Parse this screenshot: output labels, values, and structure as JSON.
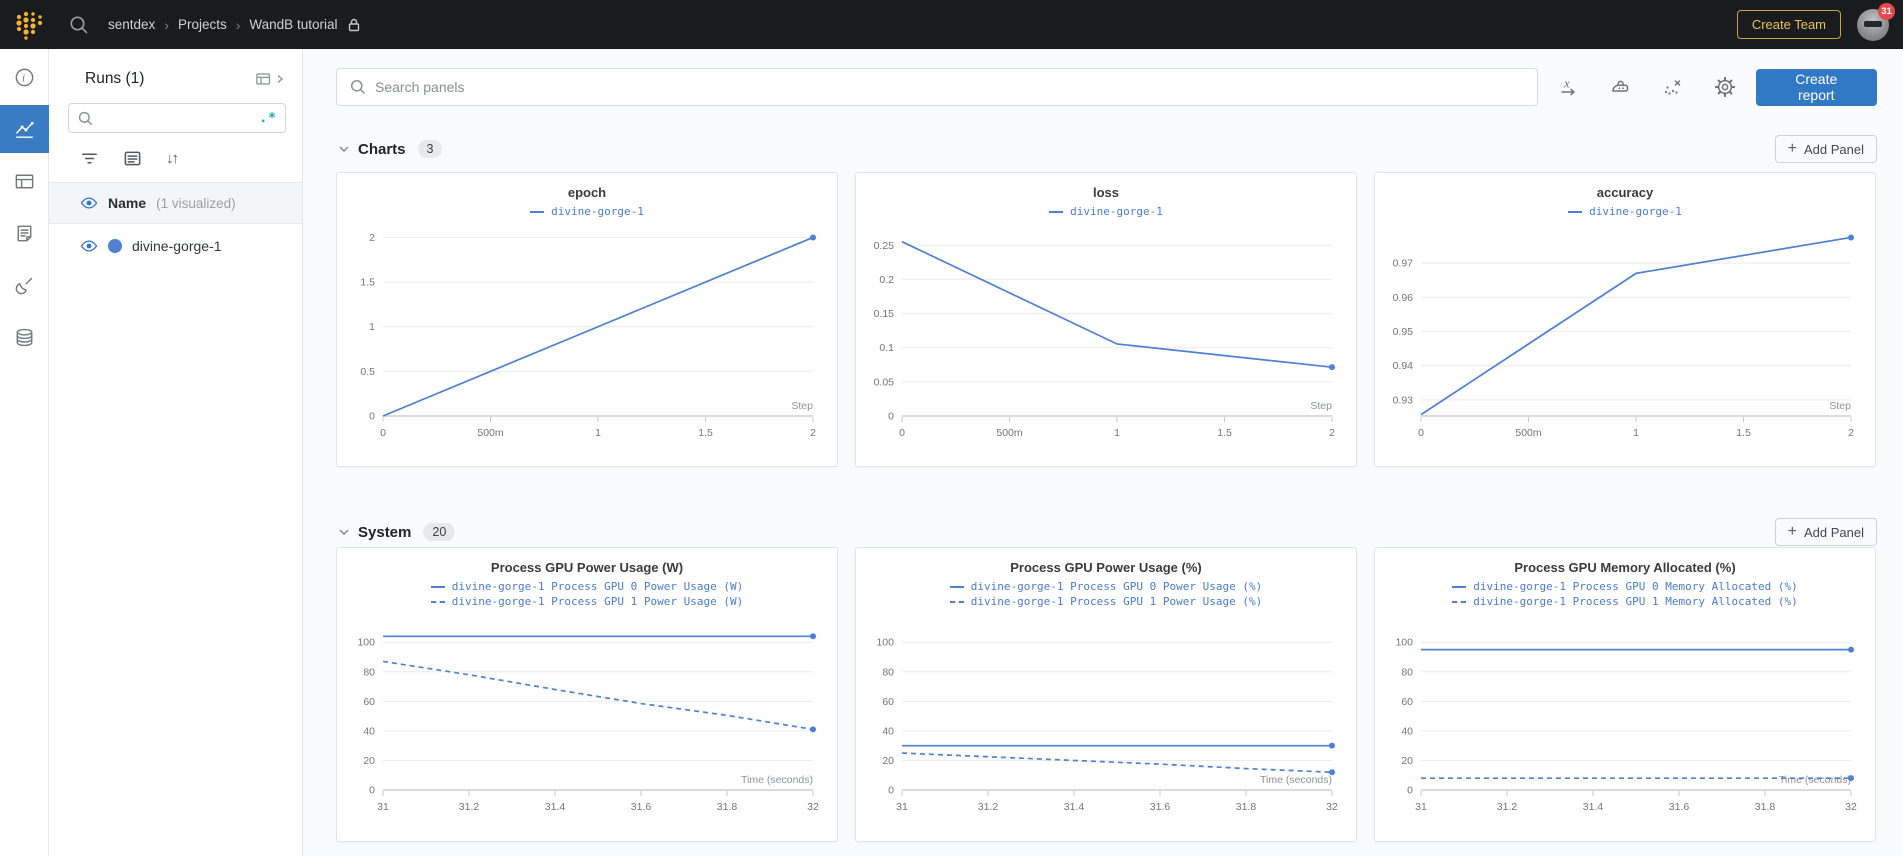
{
  "topbar": {
    "breadcrumb": {
      "parts": [
        "sentdex",
        "Projects",
        "WandB tutorial"
      ]
    },
    "create_team_label": "Create Team",
    "notification_count": "31",
    "icons": [
      "wandb-dots-logo",
      "search-icon",
      "lock-icon",
      "avatar"
    ]
  },
  "sidebar": {
    "nav_icons": [
      "info-icon",
      "line-chart-icon",
      "table-icon",
      "logs-icon",
      "sweep-broom-icon",
      "artifacts-database-icon"
    ],
    "selected": "line-chart-icon"
  },
  "runs_panel": {
    "title": "Runs (1)",
    "search_placeholder": "",
    "regex_glyph": ".*",
    "tool_icons": [
      "filter-icon",
      "list-icon",
      "sort-icon"
    ],
    "header_name": "Name",
    "header_visualized": "(1 visualized)",
    "runs": [
      {
        "name": "divine-gorge-1",
        "color": "#4e80d4",
        "visible": true
      }
    ]
  },
  "main_toolbar": {
    "search_placeholder": "Search panels",
    "icons": [
      "x-axis-icon",
      "panel-settings-icon",
      "outliers-icon",
      "gear-icon"
    ],
    "create_report_label": "Create report"
  },
  "sections": [
    {
      "label": "Charts",
      "count": "3",
      "add_panel_label": "Add Panel"
    },
    {
      "label": "System",
      "count": "20",
      "add_panel_label": "Add Panel"
    }
  ],
  "colors": {
    "topbar_bg": "#191b1f",
    "gold": "#eac253",
    "accent_blue": "#3178c5",
    "line_blue": "#4e80d4",
    "selected_nav_bg": "#3a7cc4",
    "badge_red": "#e5484d",
    "regex_teal": "#11a8bd"
  },
  "chart_data": [
    {
      "type": "line",
      "title": "epoch",
      "xlabel": "Step",
      "xlim": [
        0,
        2
      ],
      "ylim": [
        0,
        2.05
      ],
      "grid": true,
      "legend_position": "top-center",
      "xticks": [
        {
          "v": 0,
          "label": "0"
        },
        {
          "v": 0.5,
          "label": "500m"
        },
        {
          "v": 1,
          "label": "1"
        },
        {
          "v": 1.5,
          "label": "1.5"
        },
        {
          "v": 2,
          "label": "2"
        }
      ],
      "yticks": [
        {
          "v": 0,
          "label": "0"
        },
        {
          "v": 0.5,
          "label": "0.5"
        },
        {
          "v": 1,
          "label": "1"
        },
        {
          "v": 1.5,
          "label": "1.5"
        },
        {
          "v": 2,
          "label": "2"
        }
      ],
      "series": [
        {
          "name": "divine-gorge-1",
          "style": "solid",
          "x": [
            0,
            1,
            2
          ],
          "y": [
            0,
            1,
            2
          ]
        }
      ]
    },
    {
      "type": "line",
      "title": "loss",
      "xlabel": "Step",
      "xlim": [
        0,
        2
      ],
      "ylim": [
        0,
        0.268
      ],
      "grid": true,
      "legend_position": "top-center",
      "xticks": [
        {
          "v": 0,
          "label": "0"
        },
        {
          "v": 0.5,
          "label": "500m"
        },
        {
          "v": 1,
          "label": "1"
        },
        {
          "v": 1.5,
          "label": "1.5"
        },
        {
          "v": 2,
          "label": "2"
        }
      ],
      "yticks": [
        {
          "v": 0,
          "label": "0"
        },
        {
          "v": 0.05,
          "label": "0.05"
        },
        {
          "v": 0.1,
          "label": "0.1"
        },
        {
          "v": 0.15,
          "label": "0.15"
        },
        {
          "v": 0.2,
          "label": "0.2"
        },
        {
          "v": 0.25,
          "label": "0.25"
        }
      ],
      "series": [
        {
          "name": "divine-gorge-1",
          "style": "solid",
          "x": [
            0,
            1,
            2
          ],
          "y": [
            0.2553,
            0.1055,
            0.0715
          ]
        }
      ]
    },
    {
      "type": "line",
      "title": "accuracy",
      "xlabel": "Step",
      "xlim": [
        0,
        2
      ],
      "ylim": [
        0.9253,
        0.9788
      ],
      "grid": true,
      "legend_position": "top-center",
      "xticks": [
        {
          "v": 0,
          "label": "0"
        },
        {
          "v": 0.5,
          "label": "500m"
        },
        {
          "v": 1,
          "label": "1"
        },
        {
          "v": 1.5,
          "label": "1.5"
        },
        {
          "v": 2,
          "label": "2"
        }
      ],
      "yticks": [
        {
          "v": 0.93,
          "label": "0.93"
        },
        {
          "v": 0.94,
          "label": "0.94"
        },
        {
          "v": 0.95,
          "label": "0.95"
        },
        {
          "v": 0.96,
          "label": "0.96"
        },
        {
          "v": 0.97,
          "label": "0.97"
        }
      ],
      "series": [
        {
          "name": "divine-gorge-1",
          "style": "solid",
          "x": [
            0,
            1,
            2
          ],
          "y": [
            0.9257,
            0.967,
            0.9775
          ]
        }
      ]
    },
    {
      "type": "line",
      "title": "Process GPU Power Usage (W)",
      "xlabel": "Time (seconds)",
      "xlim": [
        31,
        32
      ],
      "ylim": [
        0,
        113
      ],
      "grid": true,
      "legend_position": "top-center",
      "xticks": [
        {
          "v": 31,
          "label": "31"
        },
        {
          "v": 31.2,
          "label": "31.2"
        },
        {
          "v": 31.4,
          "label": "31.4"
        },
        {
          "v": 31.6,
          "label": "31.6"
        },
        {
          "v": 31.8,
          "label": "31.8"
        },
        {
          "v": 32,
          "label": "32"
        }
      ],
      "yticks": [
        {
          "v": 0,
          "label": "0"
        },
        {
          "v": 20,
          "label": "20"
        },
        {
          "v": 40,
          "label": "40"
        },
        {
          "v": 60,
          "label": "60"
        },
        {
          "v": 80,
          "label": "80"
        },
        {
          "v": 100,
          "label": "100"
        }
      ],
      "series": [
        {
          "name": "divine-gorge-1 Process GPU 0 Power Usage (W)",
          "style": "solid",
          "x": [
            31,
            32
          ],
          "y": [
            104,
            104
          ]
        },
        {
          "name": "divine-gorge-1 Process GPU 1 Power Usage (W)",
          "style": "dashed",
          "x": [
            31,
            31.2,
            31.4,
            31.6,
            31.8,
            32
          ],
          "y": [
            87,
            78,
            68,
            58.5,
            50.5,
            41
          ]
        }
      ]
    },
    {
      "type": "line",
      "title": "Process GPU Power Usage (%)",
      "xlabel": "Time (seconds)",
      "xlim": [
        31,
        32
      ],
      "ylim": [
        0,
        113
      ],
      "grid": true,
      "legend_position": "top-center",
      "xticks": [
        {
          "v": 31,
          "label": "31"
        },
        {
          "v": 31.2,
          "label": "31.2"
        },
        {
          "v": 31.4,
          "label": "31.4"
        },
        {
          "v": 31.6,
          "label": "31.6"
        },
        {
          "v": 31.8,
          "label": "31.8"
        },
        {
          "v": 32,
          "label": "32"
        }
      ],
      "yticks": [
        {
          "v": 0,
          "label": "0"
        },
        {
          "v": 20,
          "label": "20"
        },
        {
          "v": 40,
          "label": "40"
        },
        {
          "v": 60,
          "label": "60"
        },
        {
          "v": 80,
          "label": "80"
        },
        {
          "v": 100,
          "label": "100"
        }
      ],
      "series": [
        {
          "name": "divine-gorge-1 Process GPU 0 Power Usage (%)",
          "style": "solid",
          "x": [
            31,
            32
          ],
          "y": [
            30,
            30
          ]
        },
        {
          "name": "divine-gorge-1 Process GPU 1 Power Usage (%)",
          "style": "dashed",
          "x": [
            31,
            31.2,
            31.4,
            31.6,
            31.8,
            32
          ],
          "y": [
            25,
            22.5,
            20,
            17.5,
            14.5,
            12
          ]
        }
      ]
    },
    {
      "type": "line",
      "title": "Process GPU Memory Allocated (%)",
      "xlabel": "Time (seconds)",
      "xlim": [
        31,
        32
      ],
      "ylim": [
        0,
        113
      ],
      "grid": true,
      "legend_position": "top-center",
      "xticks": [
        {
          "v": 31,
          "label": "31"
        },
        {
          "v": 31.2,
          "label": "31.2"
        },
        {
          "v": 31.4,
          "label": "31.4"
        },
        {
          "v": 31.6,
          "label": "31.6"
        },
        {
          "v": 31.8,
          "label": "31.8"
        },
        {
          "v": 32,
          "label": "32"
        }
      ],
      "yticks": [
        {
          "v": 0,
          "label": "0"
        },
        {
          "v": 20,
          "label": "20"
        },
        {
          "v": 40,
          "label": "40"
        },
        {
          "v": 60,
          "label": "60"
        },
        {
          "v": 80,
          "label": "80"
        },
        {
          "v": 100,
          "label": "100"
        }
      ],
      "series": [
        {
          "name": "divine-gorge-1 Process GPU 0 Memory Allocated (%)",
          "style": "solid",
          "x": [
            31,
            32
          ],
          "y": [
            95,
            95
          ]
        },
        {
          "name": "divine-gorge-1 Process GPU 1 Memory Allocated (%)",
          "style": "dashed",
          "x": [
            31,
            32
          ],
          "y": [
            8,
            8
          ]
        }
      ]
    }
  ]
}
